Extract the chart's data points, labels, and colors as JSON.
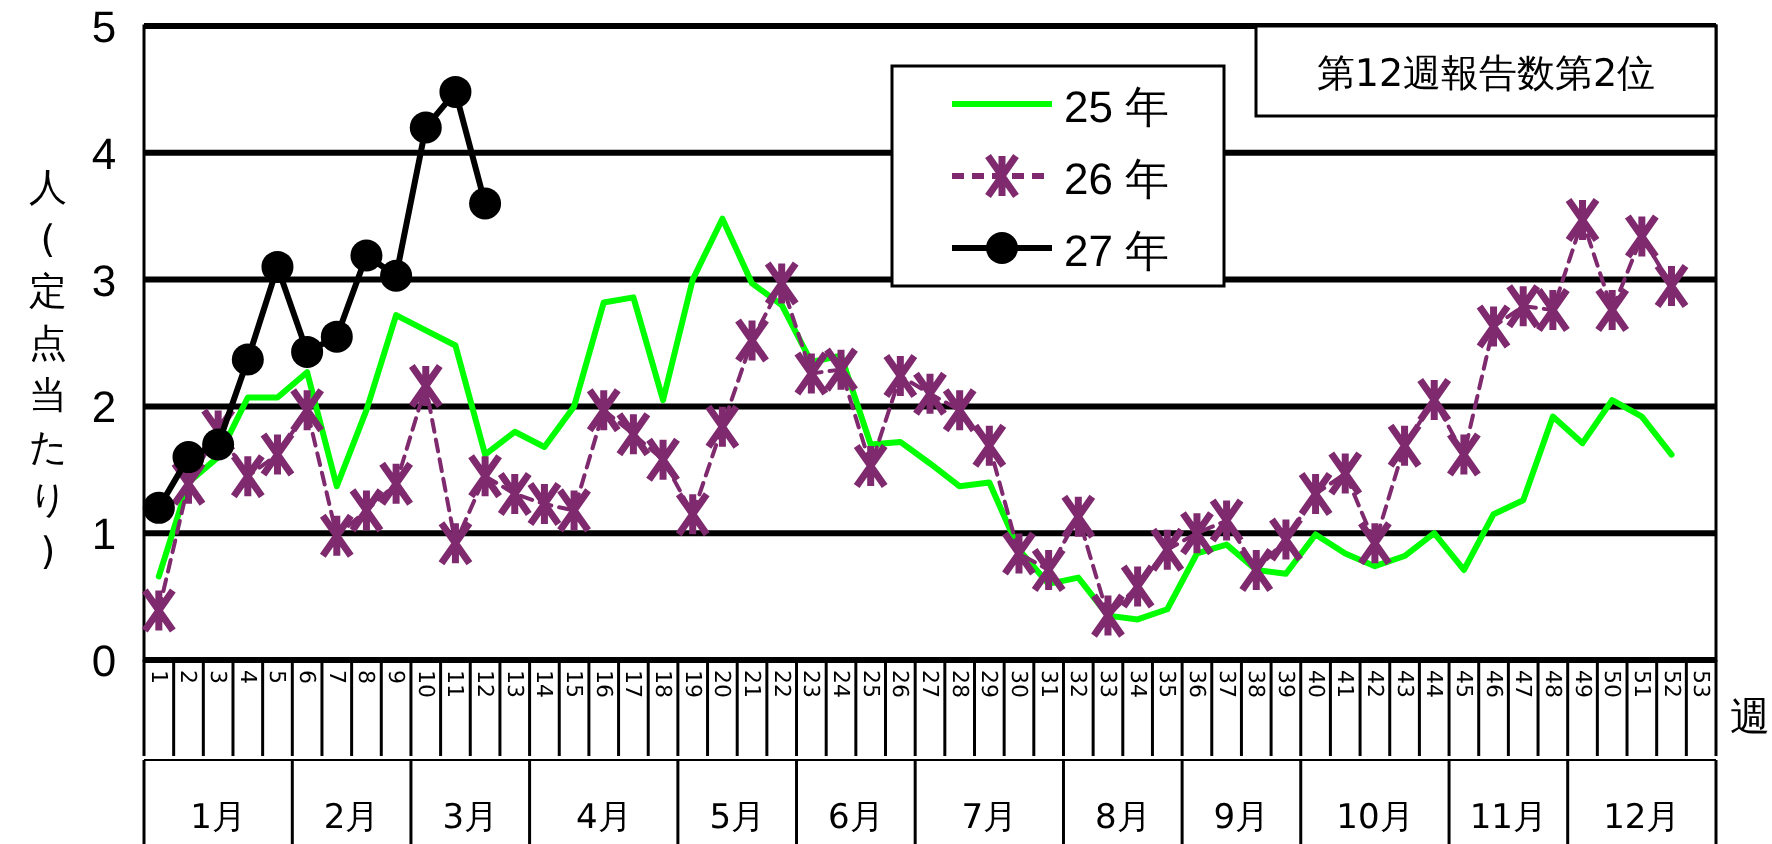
{
  "chart_data": {
    "type": "line",
    "xlabel": "週",
    "ylabel": "人(定点当たり)",
    "categories": [
      "1",
      "2",
      "3",
      "4",
      "5",
      "6",
      "7",
      "8",
      "9",
      "10",
      "11",
      "12",
      "13",
      "14",
      "15",
      "16",
      "17",
      "18",
      "19",
      "20",
      "21",
      "22",
      "23",
      "24",
      "25",
      "26",
      "27",
      "28",
      "29",
      "30",
      "31",
      "32",
      "33",
      "34",
      "35",
      "36",
      "37",
      "38",
      "39",
      "40",
      "41",
      "42",
      "43",
      "44",
      "45",
      "46",
      "47",
      "48",
      "49",
      "50",
      "51",
      "52",
      "53"
    ],
    "ylim": [
      0,
      5
    ],
    "yticks": [
      0,
      1,
      2,
      3,
      4,
      5
    ],
    "grid": "y",
    "legend": "top",
    "tick_labels": "y",
    "series": [
      {
        "name": "25 年",
        "color": "#00ff00",
        "marker": "none",
        "line_style": "solid",
        "values": [
          0.66,
          1.4,
          1.6,
          2.07,
          2.07,
          2.27,
          1.37,
          1.97,
          2.72,
          2.6,
          2.48,
          1.62,
          1.8,
          1.68,
          2.0,
          2.82,
          2.86,
          2.05,
          3.0,
          3.48,
          2.97,
          2.8,
          2.35,
          2.4,
          1.7,
          1.72,
          1.55,
          1.37,
          1.4,
          0.87,
          0.6,
          0.65,
          0.35,
          0.32,
          0.4,
          0.84,
          0.91,
          0.71,
          0.68,
          0.99,
          0.84,
          0.74,
          0.82,
          1.0,
          0.71,
          1.15,
          1.26,
          1.92,
          1.71,
          2.05,
          1.92,
          1.62,
          null
        ]
      },
      {
        "name": "26 年",
        "color": "#7f2a6e",
        "marker": "cross",
        "line_style": "dashed",
        "values": [
          0.39,
          1.39,
          1.81,
          1.45,
          1.62,
          1.97,
          0.98,
          1.18,
          1.39,
          2.16,
          0.92,
          1.45,
          1.31,
          1.23,
          1.18,
          1.97,
          1.78,
          1.58,
          1.15,
          1.84,
          2.52,
          2.97,
          2.26,
          2.29,
          1.53,
          2.24,
          2.1,
          1.97,
          1.69,
          0.84,
          0.71,
          1.13,
          0.35,
          0.58,
          0.87,
          1.0,
          1.1,
          0.71,
          0.95,
          1.31,
          1.47,
          0.92,
          1.69,
          2.05,
          1.62,
          2.63,
          2.79,
          2.76,
          3.47,
          2.76,
          3.34,
          2.95,
          null
        ]
      },
      {
        "name": "27 年",
        "color": "#000000",
        "marker": "circle",
        "line_style": "solid",
        "values": [
          1.2,
          1.6,
          1.7,
          2.37,
          3.1,
          2.43,
          2.55,
          3.19,
          3.03,
          4.2,
          4.48,
          3.6,
          null,
          null,
          null,
          null,
          null,
          null,
          null,
          null,
          null,
          null,
          null,
          null,
          null,
          null,
          null,
          null,
          null,
          null,
          null,
          null,
          null,
          null,
          null,
          null,
          null,
          null,
          null,
          null,
          null,
          null,
          null,
          null,
          null,
          null,
          null,
          null,
          null,
          null,
          null,
          null,
          null
        ]
      }
    ],
    "annotations": [
      "第12週報告数第2位",
      "1月",
      "2月",
      "3月",
      "4月",
      "5月",
      "6月",
      "7月",
      "8月",
      "9月",
      "10月",
      "11月",
      "12月"
    ]
  }
}
